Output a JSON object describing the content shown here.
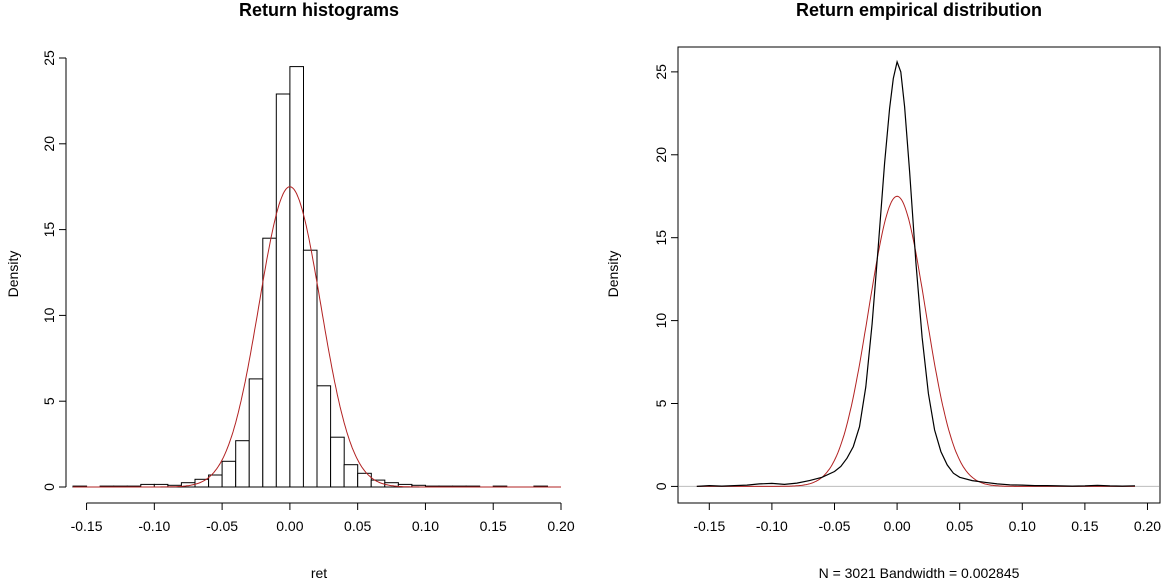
{
  "colors": {
    "normal_curve": "#b22222",
    "density_curve": "#000000",
    "zero_line": "#bdbdbd",
    "bars": "#ffffff"
  },
  "chart_data": [
    {
      "type": "bar",
      "title": "Return histograms",
      "xlabel": "ret",
      "ylabel": "Density",
      "xlim": [
        -0.16,
        0.2
      ],
      "ylim": [
        0,
        25
      ],
      "xticks": [
        "-0.15",
        "-0.10",
        "-0.05",
        "0.00",
        "0.05",
        "0.10",
        "0.15",
        "0.20"
      ],
      "yticks": [
        "0",
        "5",
        "10",
        "15",
        "20",
        "25"
      ],
      "bin_width": 0.01,
      "bins": [
        {
          "x0": -0.16,
          "density": 0.05
        },
        {
          "x0": -0.15,
          "density": 0.0
        },
        {
          "x0": -0.14,
          "density": 0.05
        },
        {
          "x0": -0.13,
          "density": 0.05
        },
        {
          "x0": -0.12,
          "density": 0.05
        },
        {
          "x0": -0.11,
          "density": 0.15
        },
        {
          "x0": -0.1,
          "density": 0.15
        },
        {
          "x0": -0.09,
          "density": 0.1
        },
        {
          "x0": -0.08,
          "density": 0.25
        },
        {
          "x0": -0.07,
          "density": 0.45
        },
        {
          "x0": -0.06,
          "density": 0.7
        },
        {
          "x0": -0.05,
          "density": 1.5
        },
        {
          "x0": -0.04,
          "density": 2.7
        },
        {
          "x0": -0.03,
          "density": 6.3
        },
        {
          "x0": -0.02,
          "density": 14.5
        },
        {
          "x0": -0.01,
          "density": 22.9
        },
        {
          "x0": 0.0,
          "density": 24.5
        },
        {
          "x0": 0.01,
          "density": 13.8
        },
        {
          "x0": 0.02,
          "density": 5.9
        },
        {
          "x0": 0.03,
          "density": 2.9
        },
        {
          "x0": 0.04,
          "density": 1.3
        },
        {
          "x0": 0.05,
          "density": 0.8
        },
        {
          "x0": 0.06,
          "density": 0.4
        },
        {
          "x0": 0.07,
          "density": 0.25
        },
        {
          "x0": 0.08,
          "density": 0.15
        },
        {
          "x0": 0.09,
          "density": 0.1
        },
        {
          "x0": 0.1,
          "density": 0.05
        },
        {
          "x0": 0.11,
          "density": 0.05
        },
        {
          "x0": 0.12,
          "density": 0.05
        },
        {
          "x0": 0.13,
          "density": 0.05
        },
        {
          "x0": 0.14,
          "density": 0.0
        },
        {
          "x0": 0.15,
          "density": 0.05
        },
        {
          "x0": 0.16,
          "density": 0.0
        },
        {
          "x0": 0.17,
          "density": 0.0
        },
        {
          "x0": 0.18,
          "density": 0.05
        }
      ],
      "normal_fit": {
        "mean": 0.0,
        "sd": 0.0228
      }
    },
    {
      "type": "line",
      "title": "Return empirical distribution",
      "xlabel": "N = 3021   Bandwidth = 0.002845",
      "ylabel": "Density",
      "xlim": [
        -0.175,
        0.21
      ],
      "ylim": [
        -1,
        26.5
      ],
      "xticks": [
        "-0.15",
        "-0.10",
        "-0.05",
        "0.00",
        "0.05",
        "0.10",
        "0.15",
        "0.20"
      ],
      "yticks": [
        "0",
        "5",
        "10",
        "15",
        "20",
        "25"
      ],
      "density_points": [
        [
          -0.16,
          0.0
        ],
        [
          -0.15,
          0.05
        ],
        [
          -0.14,
          0.02
        ],
        [
          -0.13,
          0.05
        ],
        [
          -0.12,
          0.08
        ],
        [
          -0.11,
          0.15
        ],
        [
          -0.1,
          0.18
        ],
        [
          -0.09,
          0.12
        ],
        [
          -0.08,
          0.2
        ],
        [
          -0.07,
          0.35
        ],
        [
          -0.06,
          0.55
        ],
        [
          -0.05,
          0.9
        ],
        [
          -0.045,
          1.2
        ],
        [
          -0.04,
          1.7
        ],
        [
          -0.035,
          2.4
        ],
        [
          -0.03,
          3.6
        ],
        [
          -0.025,
          6.0
        ],
        [
          -0.02,
          9.8
        ],
        [
          -0.015,
          14.5
        ],
        [
          -0.01,
          19.5
        ],
        [
          -0.006,
          22.8
        ],
        [
          -0.003,
          24.6
        ],
        [
          0.0,
          25.6
        ],
        [
          0.003,
          25.0
        ],
        [
          0.006,
          22.9
        ],
        [
          0.01,
          19.0
        ],
        [
          0.015,
          13.5
        ],
        [
          0.02,
          9.0
        ],
        [
          0.025,
          5.6
        ],
        [
          0.03,
          3.4
        ],
        [
          0.035,
          2.1
        ],
        [
          0.04,
          1.3
        ],
        [
          0.045,
          0.8
        ],
        [
          0.05,
          0.55
        ],
        [
          0.06,
          0.35
        ],
        [
          0.07,
          0.25
        ],
        [
          0.08,
          0.15
        ],
        [
          0.09,
          0.1
        ],
        [
          0.1,
          0.08
        ],
        [
          0.11,
          0.05
        ],
        [
          0.12,
          0.05
        ],
        [
          0.13,
          0.03
        ],
        [
          0.14,
          0.02
        ],
        [
          0.15,
          0.03
        ],
        [
          0.16,
          0.06
        ],
        [
          0.17,
          0.03
        ],
        [
          0.18,
          0.02
        ],
        [
          0.19,
          0.04
        ]
      ],
      "normal_fit": {
        "mean": 0.0,
        "sd": 0.0228
      }
    }
  ]
}
